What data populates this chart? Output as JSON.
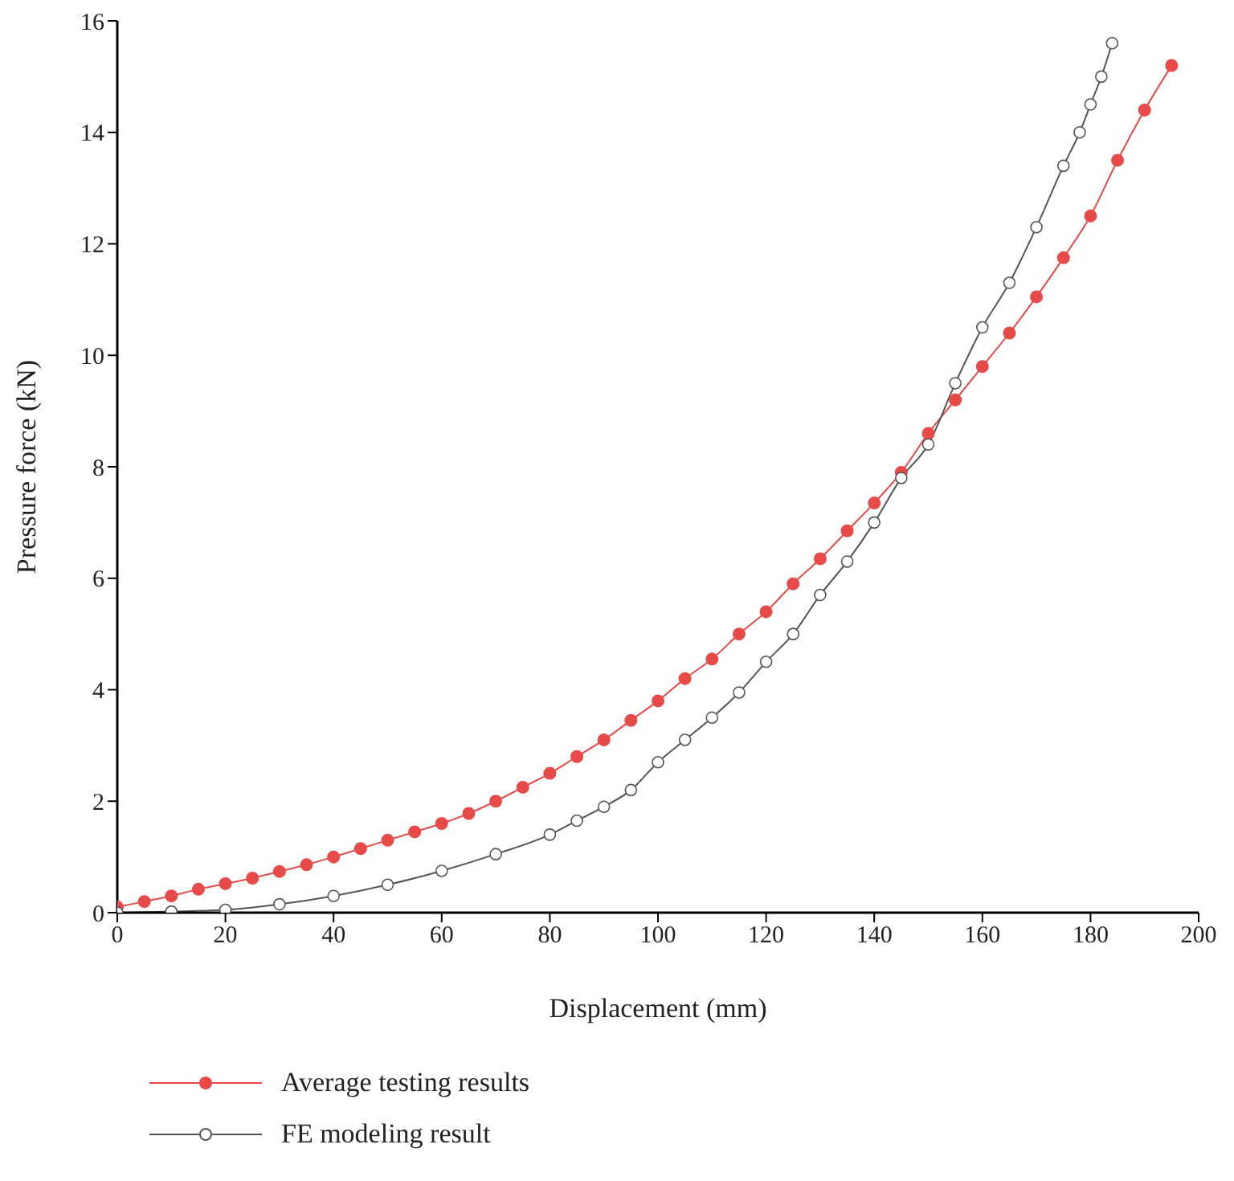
{
  "chart_data": {
    "type": "line",
    "xlabel": "Displacement (mm)",
    "ylabel": "Pressure force (kN)",
    "xlim": [
      0,
      200
    ],
    "xticks": [
      0,
      20,
      40,
      60,
      80,
      100,
      120,
      140,
      160,
      180,
      200
    ],
    "ylim": [
      0,
      16
    ],
    "yticks": [
      0,
      2,
      4,
      6,
      8,
      10,
      12,
      14,
      16
    ],
    "grid": false,
    "legend": "bottom left",
    "series": [
      {
        "name": "Average testing results",
        "color": "#e84a4a",
        "marker": "circle",
        "x": [
          0,
          5,
          10,
          15,
          20,
          25,
          30,
          35,
          40,
          45,
          50,
          55,
          60,
          65,
          70,
          75,
          80,
          85,
          90,
          95,
          100,
          105,
          110,
          115,
          120,
          125,
          130,
          135,
          140,
          145,
          150,
          155,
          160,
          165,
          170,
          175,
          180,
          185,
          190,
          195
        ],
        "values": [
          0.1,
          0.2,
          0.3,
          0.42,
          0.52,
          0.62,
          0.74,
          0.86,
          1.0,
          1.15,
          1.3,
          1.45,
          1.6,
          1.78,
          2.0,
          2.25,
          2.5,
          2.8,
          3.1,
          3.45,
          3.8,
          4.2,
          4.55,
          5.0,
          5.4,
          5.9,
          6.35,
          6.85,
          7.35,
          7.9,
          8.6,
          9.2,
          9.8,
          10.4,
          11.05,
          11.75,
          12.5,
          13.5,
          14.4,
          15.2
        ]
      },
      {
        "name": "FE modeling result",
        "color": "#555555",
        "marker": "circle",
        "x": [
          0,
          10,
          20,
          30,
          40,
          50,
          60,
          70,
          80,
          85,
          90,
          95,
          100,
          105,
          110,
          115,
          120,
          125,
          130,
          135,
          140,
          145,
          150,
          155,
          160,
          165,
          170,
          175,
          178,
          180,
          182,
          184
        ],
        "values": [
          0,
          0.02,
          0.05,
          0.15,
          0.3,
          0.5,
          0.75,
          1.05,
          1.4,
          1.65,
          1.9,
          2.2,
          2.7,
          3.1,
          3.5,
          3.95,
          4.5,
          5.0,
          5.7,
          6.3,
          7.0,
          7.8,
          8.4,
          9.5,
          10.5,
          11.3,
          12.3,
          13.4,
          14.0,
          14.5,
          15.0,
          15.6
        ]
      }
    ]
  }
}
